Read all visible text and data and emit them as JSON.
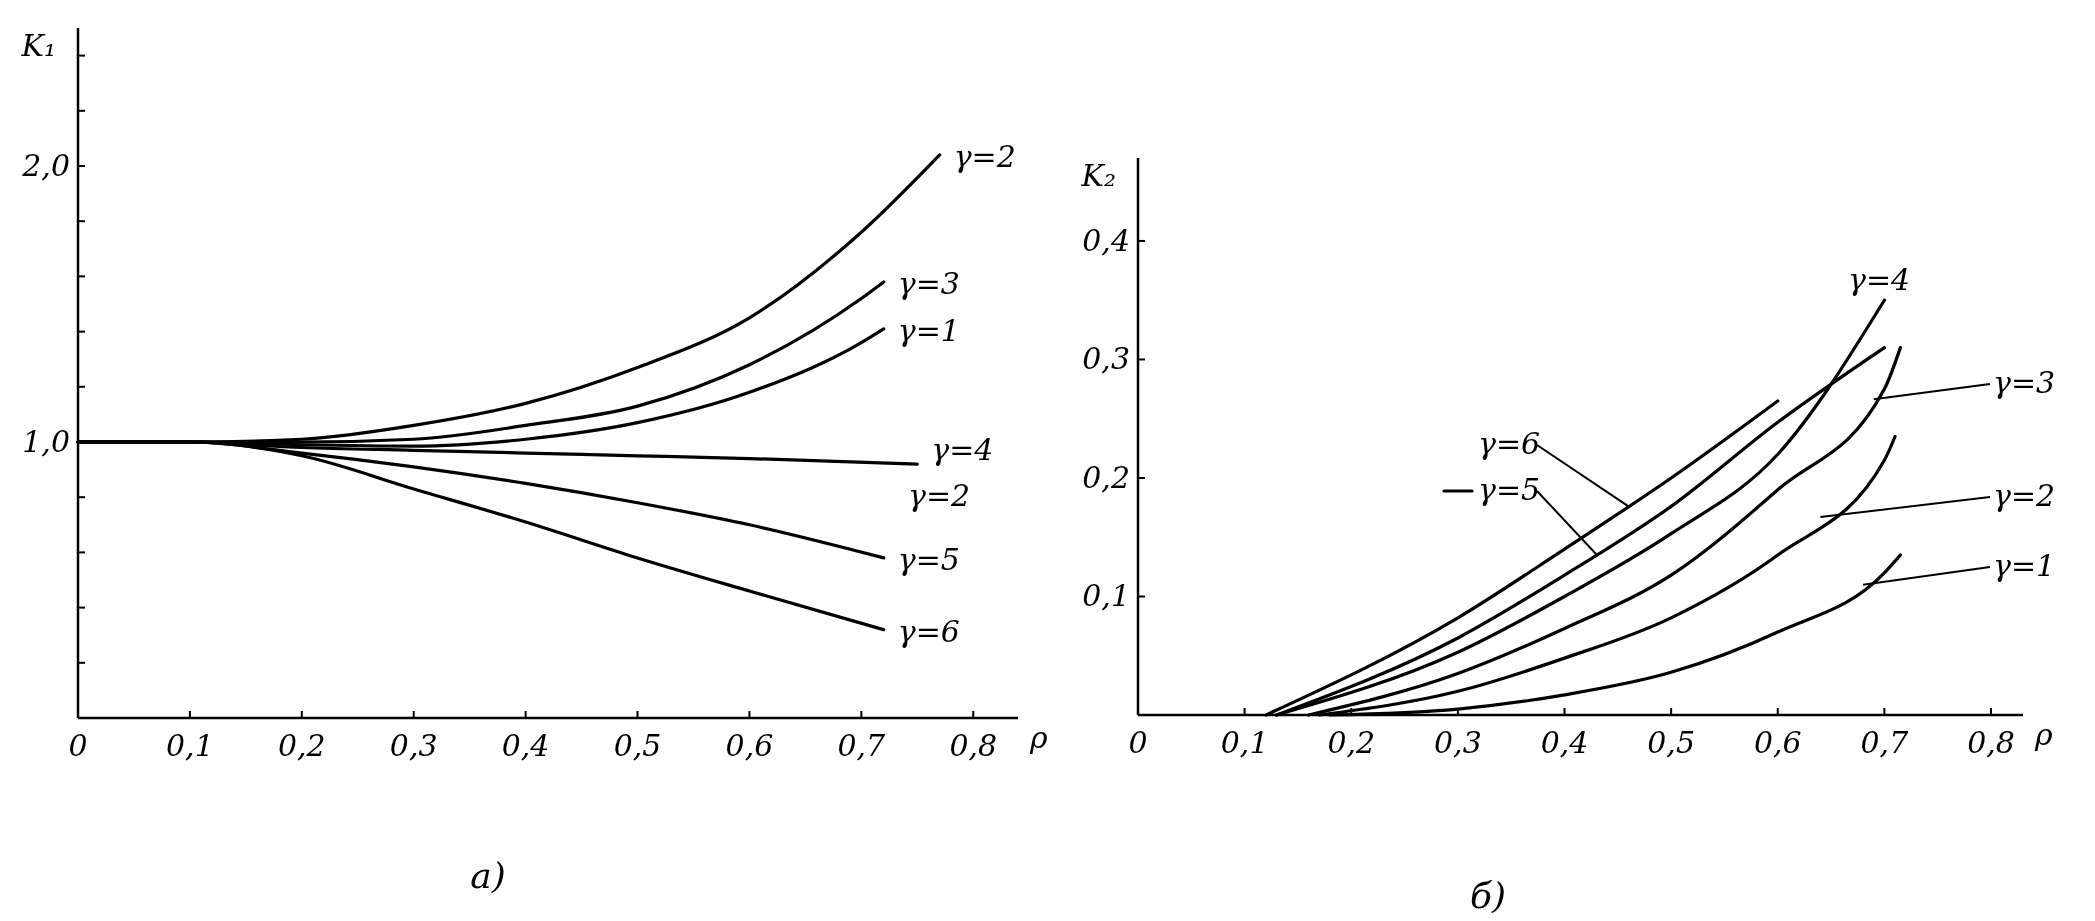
{
  "chart_data": [
    {
      "type": "line",
      "title": "а)",
      "xlabel": "ρ",
      "ylabel": "K₁",
      "xlim": [
        0,
        0.84
      ],
      "ylim": [
        0,
        2.5
      ],
      "xticks": [
        0,
        {
          "value": 0.1,
          "label": "0,1"
        },
        {
          "value": 0.2,
          "label": "0,2"
        },
        {
          "value": 0.3,
          "label": "0,3"
        },
        {
          "value": 0.4,
          "label": "0,4"
        },
        {
          "value": 0.5,
          "label": "0,5"
        },
        {
          "value": 0.6,
          "label": "0,6"
        },
        {
          "value": 0.7,
          "label": "0,7"
        },
        {
          "value": 0.8,
          "label": "0,8"
        }
      ],
      "yticks": [
        {
          "value": 0.2,
          "label": null
        },
        {
          "value": 0.4,
          "label": null
        },
        {
          "value": 0.6,
          "label": null
        },
        {
          "value": 0.8,
          "label": null
        },
        {
          "value": 1,
          "label": "1,0"
        },
        {
          "value": 1.2,
          "label": null
        },
        {
          "value": 1.4,
          "label": null
        },
        {
          "value": 1.6,
          "label": null
        },
        {
          "value": 1.8,
          "label": null
        },
        {
          "value": 2,
          "label": "2,0"
        },
        {
          "value": 2.2,
          "label": null
        },
        {
          "value": 2.4,
          "label": null
        }
      ],
      "grid": false,
      "marker": "none",
      "line_style": "solid",
      "annotations": [
        "γ=2"
      ],
      "series": [
        {
          "name": "γ=2",
          "color": "#000000",
          "x": [
            0,
            0.1,
            0.2,
            0.3,
            0.4,
            0.5,
            0.6,
            0.7,
            0.77
          ],
          "values": [
            1,
            1,
            1.01,
            1.06,
            1.14,
            1.27,
            1.45,
            1.76,
            2.04
          ]
        },
        {
          "name": "γ=3",
          "color": "#000000",
          "x": [
            0,
            0.1,
            0.2,
            0.3,
            0.4,
            0.5,
            0.6,
            0.7,
            0.72
          ],
          "values": [
            1,
            1,
            1,
            1.01,
            1.06,
            1.13,
            1.28,
            1.52,
            1.58
          ]
        },
        {
          "name": "γ=1",
          "color": "#000000",
          "x": [
            0,
            0.1,
            0.2,
            0.3,
            0.4,
            0.5,
            0.6,
            0.7,
            0.72
          ],
          "values": [
            1,
            1,
            0.99,
            0.985,
            1.01,
            1.07,
            1.18,
            1.36,
            1.41
          ]
        },
        {
          "name": "γ=4",
          "color": "#000000",
          "x": [
            0,
            0.1,
            0.2,
            0.3,
            0.4,
            0.5,
            0.6,
            0.75
          ],
          "values": [
            1,
            1,
            0.98,
            0.97,
            0.96,
            0.95,
            0.94,
            0.92
          ]
        },
        {
          "name": "γ=5",
          "color": "#000000",
          "x": [
            0,
            0.1,
            0.2,
            0.3,
            0.4,
            0.5,
            0.6,
            0.72
          ],
          "values": [
            1,
            1,
            0.96,
            0.91,
            0.85,
            0.78,
            0.7,
            0.58
          ]
        },
        {
          "name": "γ=6",
          "color": "#000000",
          "x": [
            0,
            0.1,
            0.2,
            0.3,
            0.4,
            0.5,
            0.6,
            0.72
          ],
          "values": [
            1,
            1,
            0.95,
            0.83,
            0.71,
            0.58,
            0.46,
            0.32
          ]
        }
      ]
    },
    {
      "type": "line",
      "title": "б)",
      "xlabel": "ρ",
      "ylabel": "K₂",
      "xlim": [
        0,
        0.83
      ],
      "ylim": [
        0,
        0.47
      ],
      "xticks": [
        0,
        {
          "value": 0.1,
          "label": "0,1"
        },
        {
          "value": 0.2,
          "label": "0,2"
        },
        {
          "value": 0.3,
          "label": "0,3"
        },
        {
          "value": 0.4,
          "label": "0,4"
        },
        {
          "value": 0.5,
          "label": "0,5"
        },
        {
          "value": 0.6,
          "label": "0,6"
        },
        {
          "value": 0.7,
          "label": "0,7"
        },
        {
          "value": 0.8,
          "label": "0,8"
        }
      ],
      "yticks": [
        {
          "value": 0.1,
          "label": "0,1"
        },
        {
          "value": 0.2,
          "label": "0,2"
        },
        {
          "value": 0.3,
          "label": "0,3"
        },
        {
          "value": 0.4,
          "label": "0,4"
        }
      ],
      "grid": false,
      "legend": "right",
      "marker": "none",
      "line_style": "solid",
      "series": [
        {
          "name": "γ=1",
          "color": "#000000",
          "x": [
            0.18,
            0.3,
            0.4,
            0.5,
            0.6,
            0.7,
            0.715
          ],
          "values": [
            0,
            0.005,
            0.017,
            0.036,
            0.07,
            0.12,
            0.135
          ]
        },
        {
          "name": "γ=2",
          "color": "#000000",
          "x": [
            0.17,
            0.3,
            0.4,
            0.5,
            0.6,
            0.7,
            0.71
          ],
          "values": [
            0,
            0.02,
            0.048,
            0.082,
            0.135,
            0.215,
            0.235
          ]
        },
        {
          "name": "γ=3",
          "color": "#000000",
          "x": [
            0.16,
            0.3,
            0.4,
            0.5,
            0.6,
            0.7,
            0.715
          ],
          "values": [
            0,
            0.035,
            0.073,
            0.118,
            0.19,
            0.275,
            0.31
          ]
        },
        {
          "name": "γ=4",
          "color": "#000000",
          "x": [
            0.13,
            0.3,
            0.4,
            0.5,
            0.6,
            0.7
          ],
          "values": [
            0,
            0.053,
            0.1,
            0.153,
            0.22,
            0.35
          ]
        },
        {
          "name": "γ=5",
          "color": "#000000",
          "x": [
            0.13,
            0.3,
            0.4,
            0.5,
            0.6,
            0.7
          ],
          "values": [
            0,
            0.065,
            0.118,
            0.176,
            0.247,
            0.31
          ]
        },
        {
          "name": "γ=6",
          "color": "#000000",
          "x": [
            0.12,
            0.3,
            0.4,
            0.5,
            0.6
          ],
          "values": [
            0,
            0.082,
            0.14,
            0.2,
            0.265
          ]
        }
      ]
    }
  ]
}
